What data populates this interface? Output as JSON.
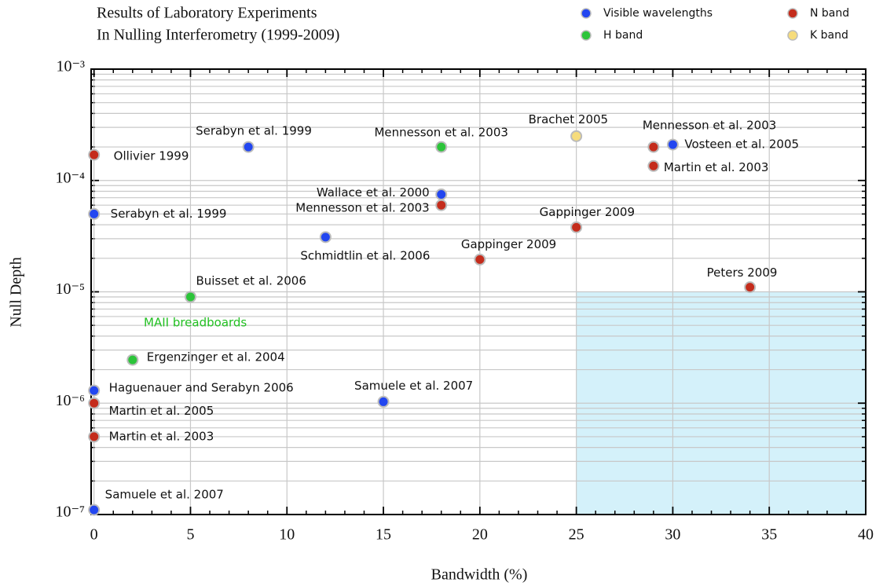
{
  "chart_data": {
    "type": "scatter",
    "title": [
      "Results of Laboratory Experiments",
      "In Nulling Interferometry (1999-2009)"
    ],
    "x_label": "Bandwidth (%)",
    "y_label": "Null Depth",
    "log_y": true,
    "grid": true,
    "legend": "top-right",
    "xlim": [
      -0.15,
      40
    ],
    "ylim": [
      1e-07,
      0.001
    ],
    "xticks": [
      0,
      5,
      10,
      15,
      20,
      25,
      30,
      35,
      40
    ],
    "xminorticks": [
      1,
      2,
      3,
      4,
      6,
      7,
      8,
      9,
      11,
      12,
      13,
      14,
      16,
      17,
      18,
      19,
      21,
      22,
      23,
      24,
      26,
      27,
      28,
      29,
      31,
      32,
      33,
      34,
      36,
      37,
      38,
      39
    ],
    "yticks": [
      {
        "value": 1e-07,
        "label": "10⁻⁷"
      },
      {
        "value": 1e-06,
        "label": "10⁻⁶"
      },
      {
        "value": 1e-05,
        "label": "10⁻⁵"
      },
      {
        "value": 0.0001,
        "label": "10⁻⁴"
      },
      {
        "value": 0.001,
        "label": "10⁻³"
      }
    ],
    "yminorticks": [
      2e-07,
      3e-07,
      4e-07,
      5e-07,
      6e-07,
      7e-07,
      8e-07,
      9e-07,
      2e-06,
      3e-06,
      4e-06,
      5e-06,
      6e-06,
      7e-06,
      8e-06,
      9e-06,
      2e-05,
      3e-05,
      4e-05,
      5e-05,
      6e-05,
      7e-05,
      8e-05,
      9e-05,
      0.0002,
      0.0003,
      0.0004,
      0.0005,
      0.0006,
      0.0007,
      0.0008,
      0.0009
    ],
    "region": {
      "color": "#d4f1fa",
      "xlim": [
        25,
        40
      ],
      "ylim": [
        1e-07,
        1e-05
      ]
    },
    "annotation": {
      "text": "MAII breadboards",
      "color": "#22c022"
    },
    "series": [
      {
        "name": "Visible wavelengths",
        "color": "#2246f0",
        "x": [
          8,
          0,
          12,
          18,
          30,
          0,
          15,
          0
        ],
        "values": [
          0.0002,
          5e-05,
          3.1e-05,
          7.5e-05,
          0.00021,
          1.3e-06,
          1.03e-06,
          1.1e-07
        ],
        "labels": [
          "Serabyn et al. 1999",
          "Serabyn et al. 1999",
          "Schmidtlin et al. 2006",
          "Wallace et al. 2000",
          "Vosteen et al. 2005",
          "Haguenauer and Serabyn 2006",
          "Samuele et al. 2007",
          "Samuele et al. 2007"
        ]
      },
      {
        "name": "H band",
        "color": "#2cc43a",
        "x": [
          18,
          5,
          2
        ],
        "values": [
          0.0002,
          9e-06,
          2.45e-06
        ],
        "labels": [
          "Mennesson et al. 2003",
          "Buisset et al. 2006",
          "Ergenzinger et al. 2004"
        ]
      },
      {
        "name": "N band",
        "color": "#c42c1c",
        "x": [
          0,
          18,
          20,
          25,
          29,
          29,
          34,
          0,
          0
        ],
        "values": [
          0.00017,
          6e-05,
          1.95e-05,
          3.8e-05,
          0.0002,
          0.000135,
          1.1e-05,
          1e-06,
          5e-07
        ],
        "labels": [
          "Ollivier 1999",
          "Mennesson et al. 2003",
          "Gappinger 2009",
          "Gappinger 2009",
          "Mennesson et al. 2003",
          "Martin et al. 2003",
          "Peters 2009",
          "Martin et al. 2005",
          "Martin et al. 2003"
        ]
      },
      {
        "name": "K band",
        "color": "#f6dc7c",
        "x": [
          25
        ],
        "values": [
          0.00025
        ],
        "labels": [
          "Brachet 2005"
        ]
      }
    ]
  }
}
